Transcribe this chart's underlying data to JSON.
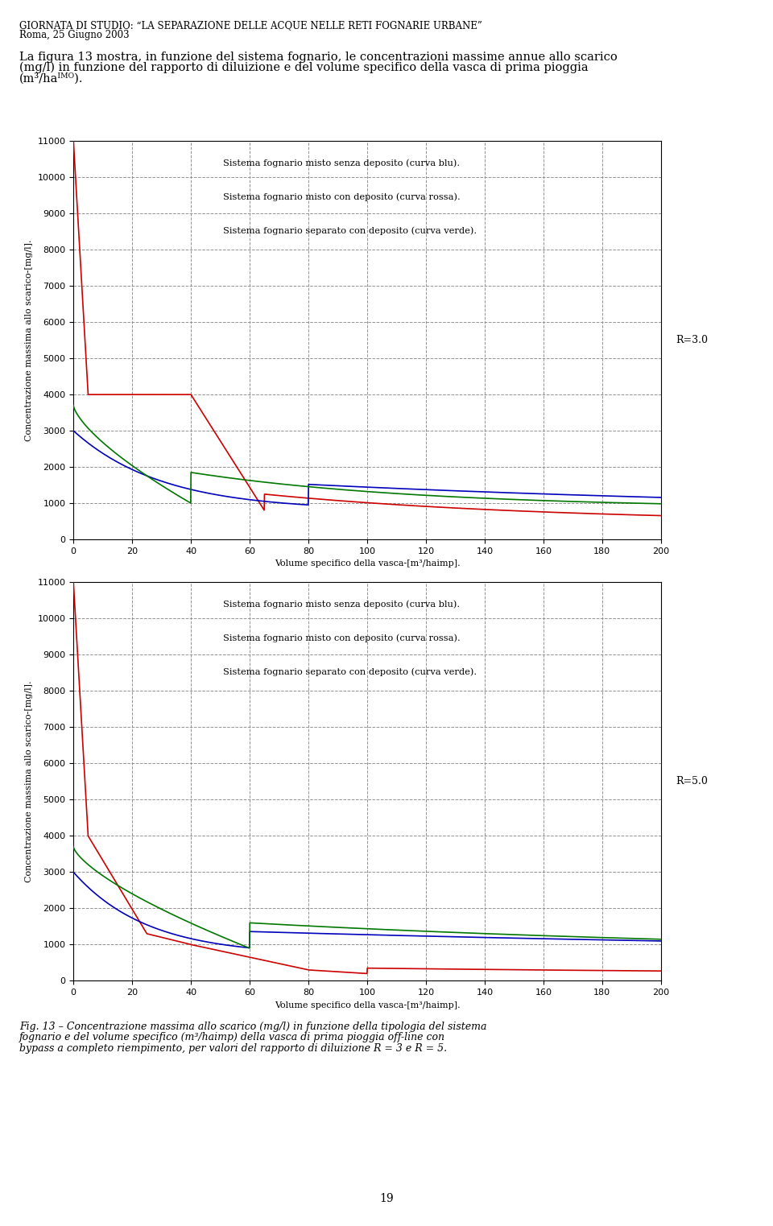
{
  "header_line1": "GIORNATA DI STUDIO: “LA SEPARAZIONE DELLE ACQUE NELLE RETI FOGNARIE URBANE”",
  "header_line2": "Roma, 25 Giugno 2003",
  "ylabel": "Concentrazione massima allo scarico-[mg/l].",
  "xlabel": "Volume specifico della vasca-[m³/haimp].",
  "legend_line1": "Sistema fognario misto senza deposito (curva blu).",
  "legend_line2": "Sistema fognario misto con deposito (curva rossa).",
  "legend_line3": "Sistema fognario separato con deposito (curva verde).",
  "R1_label": "R=3.0",
  "R2_label": "R=5.0",
  "color_blue": "#0000bb",
  "color_red": "#cc0000",
  "color_green": "#007700",
  "background_color": "#ffffff",
  "page_number": "19",
  "caption_line1": "Fig. 13 – Concentrazione massima allo scarico (mg/l) in funzione della tipologia del sistema",
  "caption_line2": "fognario e del volume specifico (m³/ha",
  "caption_line2b": ") della vasca di prima pioggia off-line con",
  "caption_line3": "bypass a completo riempimento, per valori del rapporto di diluizione R = 3 e R = 5."
}
